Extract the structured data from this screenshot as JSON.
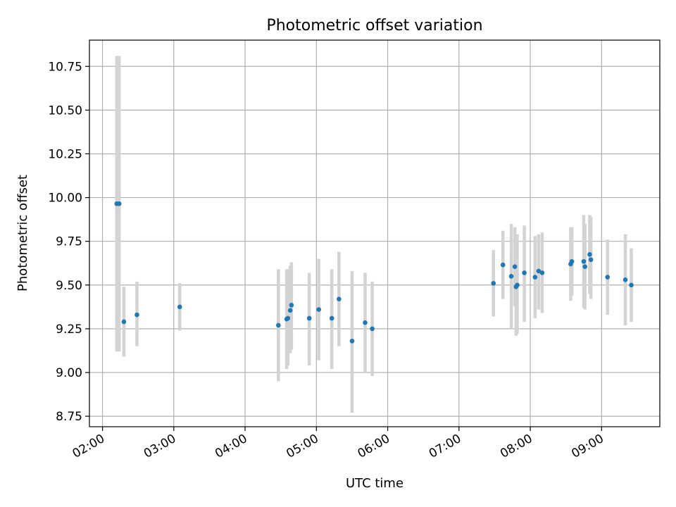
{
  "chart_data": {
    "type": "scatter",
    "title": "Photometric offset variation",
    "xlabel": "UTC time",
    "ylabel": "Photometric offset",
    "xlim": [
      "01:49",
      "09:49"
    ],
    "ylim": [
      8.69,
      10.9
    ],
    "xticks": [
      "02:00",
      "03:00",
      "04:00",
      "05:00",
      "06:00",
      "07:00",
      "08:00",
      "09:00"
    ],
    "yticks": [
      "8.75",
      "9.00",
      "9.25",
      "9.50",
      "9.75",
      "10.00",
      "10.25",
      "10.50",
      "10.75"
    ],
    "grid": true,
    "marker_color": "#1f77b4",
    "errorbar_color": "#d3d3d3",
    "points": [
      {
        "t": "02:12",
        "y": 9.965,
        "lo": 9.12,
        "hi": 10.81
      },
      {
        "t": "02:14",
        "y": 9.965,
        "lo": 9.12,
        "hi": 10.81
      },
      {
        "t": "02:18",
        "y": 9.29,
        "lo": 9.09,
        "hi": 9.49
      },
      {
        "t": "02:29",
        "y": 9.33,
        "lo": 9.15,
        "hi": 9.52
      },
      {
        "t": "03:05",
        "y": 9.375,
        "lo": 9.24,
        "hi": 9.51
      },
      {
        "t": "04:28",
        "y": 9.27,
        "lo": 8.95,
        "hi": 9.59
      },
      {
        "t": "04:35",
        "y": 9.305,
        "lo": 9.02,
        "hi": 9.59
      },
      {
        "t": "04:36",
        "y": 9.31,
        "lo": 9.04,
        "hi": 9.59
      },
      {
        "t": "04:38",
        "y": 9.355,
        "lo": 9.11,
        "hi": 9.61
      },
      {
        "t": "04:39",
        "y": 9.385,
        "lo": 9.13,
        "hi": 9.63
      },
      {
        "t": "04:54",
        "y": 9.31,
        "lo": 9.04,
        "hi": 9.57
      },
      {
        "t": "05:02",
        "y": 9.36,
        "lo": 9.07,
        "hi": 9.65
      },
      {
        "t": "05:13",
        "y": 9.31,
        "lo": 9.02,
        "hi": 9.59
      },
      {
        "t": "05:19",
        "y": 9.42,
        "lo": 9.15,
        "hi": 9.69
      },
      {
        "t": "05:30",
        "y": 9.18,
        "lo": 8.77,
        "hi": 9.58
      },
      {
        "t": "05:41",
        "y": 9.285,
        "lo": 9.0,
        "hi": 9.57
      },
      {
        "t": "05:47",
        "y": 9.25,
        "lo": 8.98,
        "hi": 9.52
      },
      {
        "t": "07:29",
        "y": 9.51,
        "lo": 9.32,
        "hi": 9.7
      },
      {
        "t": "07:37",
        "y": 9.615,
        "lo": 9.42,
        "hi": 9.81
      },
      {
        "t": "07:44",
        "y": 9.55,
        "lo": 9.25,
        "hi": 9.85
      },
      {
        "t": "07:47",
        "y": 9.605,
        "lo": 9.38,
        "hi": 9.83
      },
      {
        "t": "07:48",
        "y": 9.49,
        "lo": 9.21,
        "hi": 9.77
      },
      {
        "t": "07:49",
        "y": 9.5,
        "lo": 9.22,
        "hi": 9.79
      },
      {
        "t": "07:55",
        "y": 9.57,
        "lo": 9.29,
        "hi": 9.84
      },
      {
        "t": "08:04",
        "y": 9.545,
        "lo": 9.31,
        "hi": 9.78
      },
      {
        "t": "08:07",
        "y": 9.58,
        "lo": 9.36,
        "hi": 9.79
      },
      {
        "t": "08:10",
        "y": 9.57,
        "lo": 9.34,
        "hi": 9.8
      },
      {
        "t": "08:34",
        "y": 9.62,
        "lo": 9.41,
        "hi": 9.83
      },
      {
        "t": "08:35",
        "y": 9.635,
        "lo": 9.44,
        "hi": 9.83
      },
      {
        "t": "08:45",
        "y": 9.635,
        "lo": 9.37,
        "hi": 9.9
      },
      {
        "t": "08:46",
        "y": 9.605,
        "lo": 9.36,
        "hi": 9.85
      },
      {
        "t": "08:50",
        "y": 9.675,
        "lo": 9.45,
        "hi": 9.9
      },
      {
        "t": "08:51",
        "y": 9.645,
        "lo": 9.42,
        "hi": 9.89
      },
      {
        "t": "09:05",
        "y": 9.545,
        "lo": 9.33,
        "hi": 9.76
      },
      {
        "t": "09:20",
        "y": 9.53,
        "lo": 9.27,
        "hi": 9.79
      },
      {
        "t": "09:25",
        "y": 9.5,
        "lo": 9.29,
        "hi": 9.71
      }
    ]
  }
}
